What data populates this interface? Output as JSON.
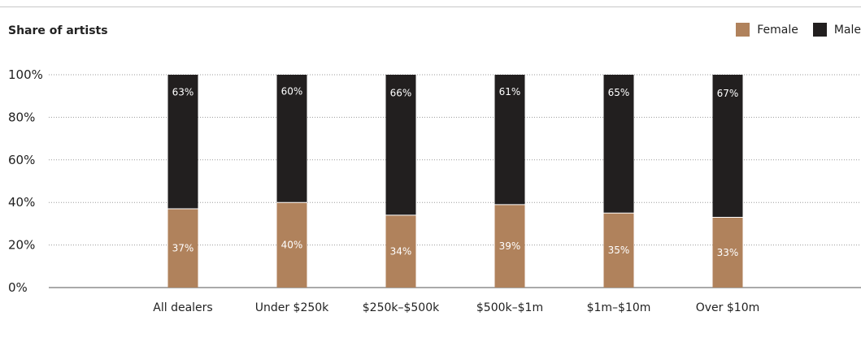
{
  "chart_data": {
    "type": "bar",
    "stacked": true,
    "title": "Share of artists",
    "categories": [
      "All dealers",
      "Under $250k",
      "$250k–$500k",
      "$500k–$1m",
      "$1m–$10m",
      "Over $10m"
    ],
    "series": [
      {
        "name": "Female",
        "color": "#b0825c",
        "values": [
          37,
          40,
          34,
          39,
          35,
          33
        ],
        "labels": [
          "37%",
          "40%",
          "34%",
          "39%",
          "35%",
          "33%"
        ]
      },
      {
        "name": "Male",
        "color": "#221f1f",
        "values": [
          63,
          60,
          66,
          61,
          65,
          67
        ],
        "labels": [
          "63%",
          "60%",
          "66%",
          "61%",
          "65%",
          "67%"
        ]
      }
    ],
    "ylim": [
      0,
      100
    ],
    "yticks": [
      0,
      20,
      40,
      60,
      80,
      100
    ],
    "ytick_labels": [
      "0%",
      "20%",
      "40%",
      "60%",
      "80%",
      "100%"
    ],
    "grid": true,
    "legend_position": "top-right"
  }
}
